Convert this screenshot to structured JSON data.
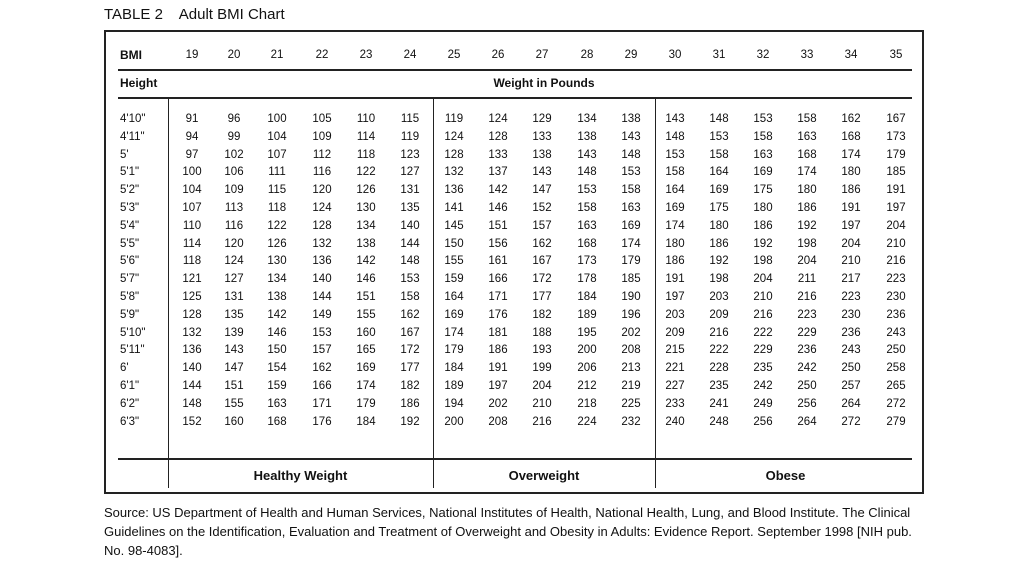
{
  "caption": "TABLE 2    Adult BMI Chart",
  "table": {
    "bmi_label": "BMI",
    "bmi_values": [
      "19",
      "20",
      "21",
      "22",
      "23",
      "24",
      "25",
      "26",
      "27",
      "28",
      "29",
      "30",
      "31",
      "32",
      "33",
      "34",
      "35"
    ],
    "height_label": "Height",
    "weight_label": "Weight in Pounds",
    "rows": [
      {
        "height": "4'10\"",
        "weights": [
          "91",
          "96",
          "100",
          "105",
          "110",
          "115",
          "119",
          "124",
          "129",
          "134",
          "138",
          "143",
          "148",
          "153",
          "158",
          "162",
          "167"
        ]
      },
      {
        "height": "4'11\"",
        "weights": [
          "94",
          "99",
          "104",
          "109",
          "114",
          "119",
          "124",
          "128",
          "133",
          "138",
          "143",
          "148",
          "153",
          "158",
          "163",
          "168",
          "173"
        ]
      },
      {
        "height": "5'",
        "weights": [
          "97",
          "102",
          "107",
          "112",
          "118",
          "123",
          "128",
          "133",
          "138",
          "143",
          "148",
          "153",
          "158",
          "163",
          "168",
          "174",
          "179"
        ]
      },
      {
        "height": "5'1\"",
        "weights": [
          "100",
          "106",
          "111",
          "116",
          "122",
          "127",
          "132",
          "137",
          "143",
          "148",
          "153",
          "158",
          "164",
          "169",
          "174",
          "180",
          "185"
        ]
      },
      {
        "height": "5'2\"",
        "weights": [
          "104",
          "109",
          "115",
          "120",
          "126",
          "131",
          "136",
          "142",
          "147",
          "153",
          "158",
          "164",
          "169",
          "175",
          "180",
          "186",
          "191"
        ]
      },
      {
        "height": "5'3\"",
        "weights": [
          "107",
          "113",
          "118",
          "124",
          "130",
          "135",
          "141",
          "146",
          "152",
          "158",
          "163",
          "169",
          "175",
          "180",
          "186",
          "191",
          "197"
        ]
      },
      {
        "height": "5'4\"",
        "weights": [
          "110",
          "116",
          "122",
          "128",
          "134",
          "140",
          "145",
          "151",
          "157",
          "163",
          "169",
          "174",
          "180",
          "186",
          "192",
          "197",
          "204"
        ]
      },
      {
        "height": "5'5\"",
        "weights": [
          "114",
          "120",
          "126",
          "132",
          "138",
          "144",
          "150",
          "156",
          "162",
          "168",
          "174",
          "180",
          "186",
          "192",
          "198",
          "204",
          "210"
        ]
      },
      {
        "height": "5'6\"",
        "weights": [
          "118",
          "124",
          "130",
          "136",
          "142",
          "148",
          "155",
          "161",
          "167",
          "173",
          "179",
          "186",
          "192",
          "198",
          "204",
          "210",
          "216"
        ]
      },
      {
        "height": "5'7\"",
        "weights": [
          "121",
          "127",
          "134",
          "140",
          "146",
          "153",
          "159",
          "166",
          "172",
          "178",
          "185",
          "191",
          "198",
          "204",
          "211",
          "217",
          "223"
        ]
      },
      {
        "height": "5'8\"",
        "weights": [
          "125",
          "131",
          "138",
          "144",
          "151",
          "158",
          "164",
          "171",
          "177",
          "184",
          "190",
          "197",
          "203",
          "210",
          "216",
          "223",
          "230"
        ]
      },
      {
        "height": "5'9\"",
        "weights": [
          "128",
          "135",
          "142",
          "149",
          "155",
          "162",
          "169",
          "176",
          "182",
          "189",
          "196",
          "203",
          "209",
          "216",
          "223",
          "230",
          "236"
        ]
      },
      {
        "height": "5'10\"",
        "weights": [
          "132",
          "139",
          "146",
          "153",
          "160",
          "167",
          "174",
          "181",
          "188",
          "195",
          "202",
          "209",
          "216",
          "222",
          "229",
          "236",
          "243"
        ]
      },
      {
        "height": "5'11\"",
        "weights": [
          "136",
          "143",
          "150",
          "157",
          "165",
          "172",
          "179",
          "186",
          "193",
          "200",
          "208",
          "215",
          "222",
          "229",
          "236",
          "243",
          "250"
        ]
      },
      {
        "height": "6'",
        "weights": [
          "140",
          "147",
          "154",
          "162",
          "169",
          "177",
          "184",
          "191",
          "199",
          "206",
          "213",
          "221",
          "228",
          "235",
          "242",
          "250",
          "258"
        ]
      },
      {
        "height": "6'1\"",
        "weights": [
          "144",
          "151",
          "159",
          "166",
          "174",
          "182",
          "189",
          "197",
          "204",
          "212",
          "219",
          "227",
          "235",
          "242",
          "250",
          "257",
          "265"
        ]
      },
      {
        "height": "6'2\"",
        "weights": [
          "148",
          "155",
          "163",
          "171",
          "179",
          "186",
          "194",
          "202",
          "210",
          "218",
          "225",
          "233",
          "241",
          "249",
          "256",
          "264",
          "272"
        ]
      },
      {
        "height": "6'3\"",
        "weights": [
          "152",
          "160",
          "168",
          "176",
          "184",
          "192",
          "200",
          "208",
          "216",
          "224",
          "232",
          "240",
          "248",
          "256",
          "264",
          "272",
          "279"
        ]
      }
    ],
    "categories": [
      {
        "label": "Healthy Weight",
        "start": 0,
        "end": 6
      },
      {
        "label": "Overweight",
        "start": 6,
        "end": 11
      },
      {
        "label": "Obese",
        "start": 11,
        "end": 17
      }
    ]
  },
  "source": "Source: US Department of Health and Human Services, National Institutes of Health, National Health, Lung, and Blood Institute. The Clinical Guidelines on the Identification, Evaluation and Treatment of Overweight and Obesity in Adults: Evidence Report. September 1998 [NIH pub. No. 98-4083]."
}
